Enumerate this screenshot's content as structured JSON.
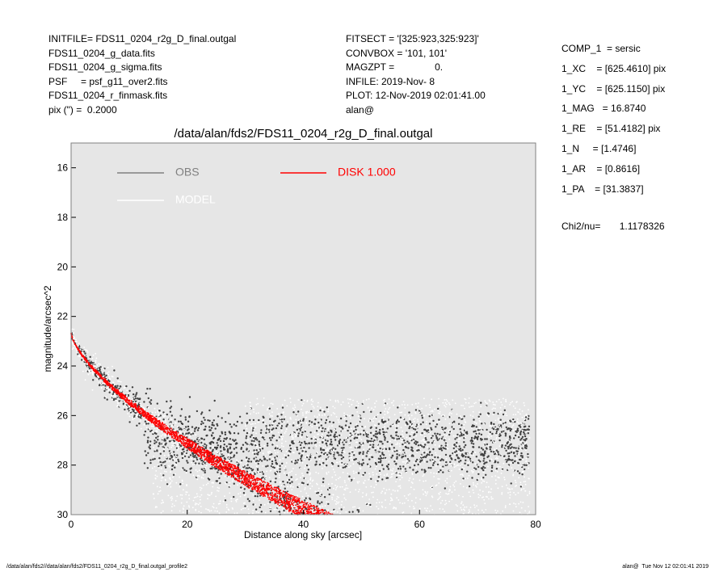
{
  "header_left": [
    "INITFILE= FDS11_0204_r2g_D_final.outgal",
    "FDS11_0204_g_data.fits",
    "FDS11_0204_g_sigma.fits",
    "PSF     = psf_g11_over2.fits",
    "FDS11_0204_r_finmask.fits",
    "pix (\") =  0.2000"
  ],
  "header_mid": [
    "FITSECT = '[325:923,325:923]'",
    "CONVBOX = '101, 101'",
    "MAGZPT =               0.",
    "INFILE: 2019-Nov- 8",
    "PLOT: 12-Nov-2019 02:01:41.00",
    "alan@"
  ],
  "header_right": [
    "COMP_1  = sersic",
    "1_XC    = [625.4610] pix",
    "1_YC    = [625.1150] pix",
    "1_MAG   = 16.8740",
    "1_RE    = [51.4182] pix",
    "1_N     = [1.4746]",
    "1_AR    = [0.8616]",
    "1_PA    = [31.3837]"
  ],
  "chi2": "Chi2/nu=       1.1178326",
  "footer_left": "/data/alan/fds2//data/alan/fds2/FDS11_0204_r2g_D_final.outgal_profile2",
  "footer_right": "alan@  Tue Nov 12 02:01:41 2019",
  "chart_data": {
    "type": "scatter",
    "title": "/data/alan/fds2/FDS11_0204_r2g_D_final.outgal",
    "xlabel": "Distance along sky [arcsec]",
    "ylabel": "magnitude/arcsec^2",
    "xlim": [
      0,
      80
    ],
    "ylim": [
      30,
      15
    ],
    "x_ticks": [
      "0",
      "20",
      "40",
      "60",
      "80"
    ],
    "y_ticks": [
      "16",
      "18",
      "20",
      "22",
      "24",
      "26",
      "28",
      "30"
    ],
    "background": "#e6e6e6",
    "legend": [
      {
        "name": "OBS",
        "color": "#808080"
      },
      {
        "name": "MODEL",
        "color": "#ffffff"
      },
      {
        "name": "DISK  1.000",
        "color": "#ff0000"
      }
    ],
    "series": [
      {
        "name": "OBS",
        "color": "#404040",
        "model": "profile",
        "mu0": 22.4,
        "re": 10.28,
        "n": 1.47,
        "mu_e": 25.5,
        "scatter_inner": 0.4,
        "noise_floor": 26.2,
        "noise_spread": 1.9
      },
      {
        "name": "MODEL",
        "color": "#ffffff",
        "model": "profile",
        "mu0": 22.4,
        "re": 10.28,
        "n": 1.47,
        "mu_e": 25.5
      },
      {
        "name": "DISK  1.000",
        "color": "#ff0000",
        "model": "profile",
        "mu0": 22.4,
        "re": 10.28,
        "n": 1.47,
        "mu_e": 25.5,
        "band_at_50": 0.9,
        "x_range": [
          0,
          52
        ]
      }
    ]
  }
}
